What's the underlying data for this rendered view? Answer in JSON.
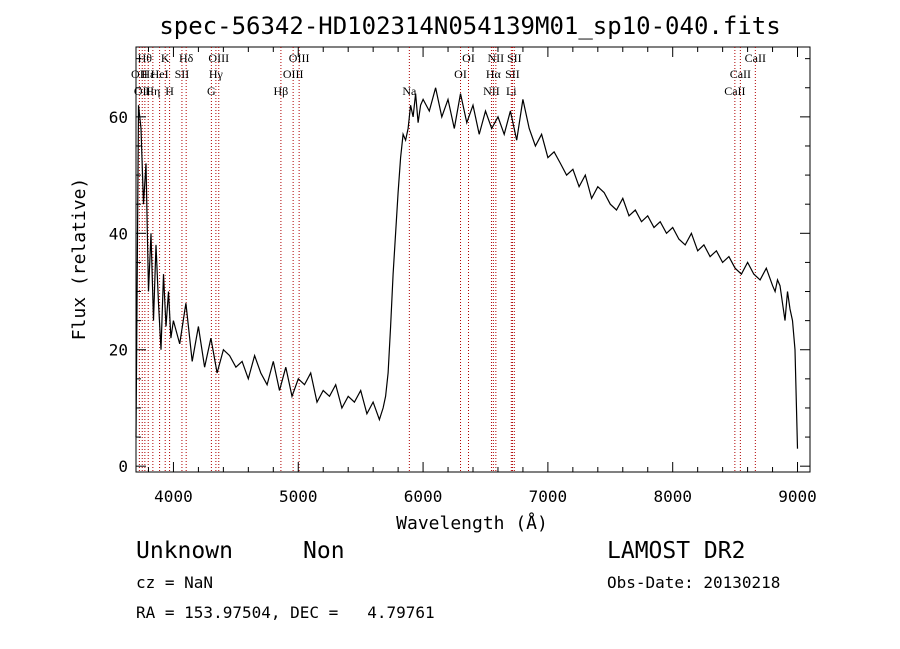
{
  "chart_data": {
    "type": "line",
    "title": "spec-56342-HD102314N054139M01_sp10-040.fits",
    "xlabel": "Wavelength (Å)",
    "ylabel": "Flux (relative)",
    "xlim": [
      3700,
      9100
    ],
    "ylim": [
      -1,
      72
    ],
    "xticks": [
      4000,
      5000,
      6000,
      7000,
      8000,
      9000
    ],
    "yticks": [
      0,
      20,
      40,
      60
    ],
    "grid": false,
    "series": [
      {
        "color": "#000000",
        "x": [
          3700,
          3720,
          3740,
          3760,
          3780,
          3800,
          3820,
          3840,
          3860,
          3880,
          3900,
          3920,
          3940,
          3960,
          3980,
          4000,
          4050,
          4100,
          4150,
          4200,
          4250,
          4300,
          4350,
          4400,
          4450,
          4500,
          4550,
          4600,
          4650,
          4700,
          4750,
          4800,
          4850,
          4900,
          4950,
          5000,
          5050,
          5100,
          5150,
          5200,
          5250,
          5300,
          5350,
          5400,
          5450,
          5500,
          5550,
          5600,
          5650,
          5680,
          5700,
          5720,
          5740,
          5760,
          5780,
          5800,
          5820,
          5840,
          5860,
          5880,
          5900,
          5920,
          5940,
          5960,
          5980,
          6000,
          6050,
          6100,
          6150,
          6200,
          6250,
          6300,
          6350,
          6400,
          6450,
          6500,
          6550,
          6600,
          6650,
          6700,
          6750,
          6800,
          6850,
          6900,
          6950,
          7000,
          7050,
          7100,
          7150,
          7200,
          7250,
          7300,
          7350,
          7400,
          7450,
          7500,
          7550,
          7600,
          7650,
          7700,
          7750,
          7800,
          7850,
          7900,
          7950,
          8000,
          8050,
          8100,
          8150,
          8200,
          8250,
          8300,
          8350,
          8400,
          8450,
          8500,
          8550,
          8600,
          8650,
          8700,
          8750,
          8800,
          8820,
          8840,
          8860,
          8880,
          8900,
          8920,
          8940,
          8960,
          8980,
          9000
        ],
        "y": [
          5,
          62,
          58,
          45,
          52,
          30,
          40,
          25,
          38,
          28,
          20,
          33,
          24,
          30,
          22,
          25,
          21,
          28,
          18,
          24,
          17,
          22,
          16,
          20,
          19,
          17,
          18,
          15,
          19,
          16,
          14,
          18,
          13,
          17,
          12,
          15,
          14,
          16,
          11,
          13,
          12,
          14,
          10,
          12,
          11,
          13,
          9,
          11,
          8,
          10,
          12,
          16,
          24,
          33,
          40,
          47,
          53,
          57,
          56,
          58,
          62,
          60,
          64,
          59,
          62,
          63,
          61,
          65,
          60,
          63,
          58,
          64,
          59,
          62,
          57,
          61,
          58,
          60,
          57,
          61,
          56,
          63,
          58,
          55,
          57,
          53,
          54,
          52,
          50,
          51,
          48,
          50,
          46,
          48,
          47,
          45,
          44,
          46,
          43,
          44,
          42,
          43,
          41,
          42,
          40,
          41,
          39,
          38,
          40,
          37,
          38,
          36,
          37,
          35,
          36,
          34,
          33,
          35,
          33,
          32,
          34,
          31,
          30,
          32,
          31,
          28,
          25,
          30,
          27,
          25,
          20,
          3
        ]
      }
    ],
    "lines": [
      {
        "x": 3727,
        "label": "OII",
        "row": 2
      },
      {
        "x": 3750,
        "label": "OII",
        "row": 3
      },
      {
        "x": 3771,
        "label": "Hθ",
        "row": 1
      },
      {
        "x": 3798,
        "label": "Hε",
        "row": 2
      },
      {
        "x": 3835,
        "label": "Hη",
        "row": 3
      },
      {
        "x": 3889,
        "label": "HeI",
        "row": 2
      },
      {
        "x": 3934,
        "label": "K",
        "row": 1
      },
      {
        "x": 3969,
        "label": "H",
        "row": 3
      },
      {
        "x": 4068,
        "label": "SII",
        "row": 2
      },
      {
        "x": 4102,
        "label": "Hδ",
        "row": 1
      },
      {
        "x": 4304,
        "label": "G",
        "row": 3
      },
      {
        "x": 4340,
        "label": "Hγ",
        "row": 2
      },
      {
        "x": 4363,
        "label": "OIII",
        "row": 1
      },
      {
        "x": 4861,
        "label": "Hβ",
        "row": 3
      },
      {
        "x": 4959,
        "label": "OIII",
        "row": 2
      },
      {
        "x": 5007,
        "label": "OIII",
        "row": 1
      },
      {
        "x": 5890,
        "label": "Na",
        "row": 3
      },
      {
        "x": 6300,
        "label": "OI",
        "row": 2
      },
      {
        "x": 6364,
        "label": "OI",
        "row": 1
      },
      {
        "x": 6548,
        "label": "NII",
        "row": 3
      },
      {
        "x": 6563,
        "label": "Hα",
        "row": 2
      },
      {
        "x": 6583,
        "label": "NII",
        "row": 1
      },
      {
        "x": 6707,
        "label": "Li",
        "row": 3
      },
      {
        "x": 6716,
        "label": "SII",
        "row": 2
      },
      {
        "x": 6731,
        "label": "SII",
        "row": 1
      },
      {
        "x": 8498,
        "label": "CaII",
        "row": 3
      },
      {
        "x": 8542,
        "label": "CaII",
        "row": 2
      },
      {
        "x": 8662,
        "label": "CaII",
        "row": 1
      }
    ]
  },
  "info": {
    "class": "Unknown",
    "subclass": "Non",
    "survey": "LAMOST DR2",
    "redshift": "cz = NaN",
    "obs_date": "Obs-Date: 20130218",
    "coords": "RA = 153.97504, DEC =   4.79761"
  },
  "colors": {
    "spectrum": "#000000",
    "line_marker": "#b00000"
  }
}
